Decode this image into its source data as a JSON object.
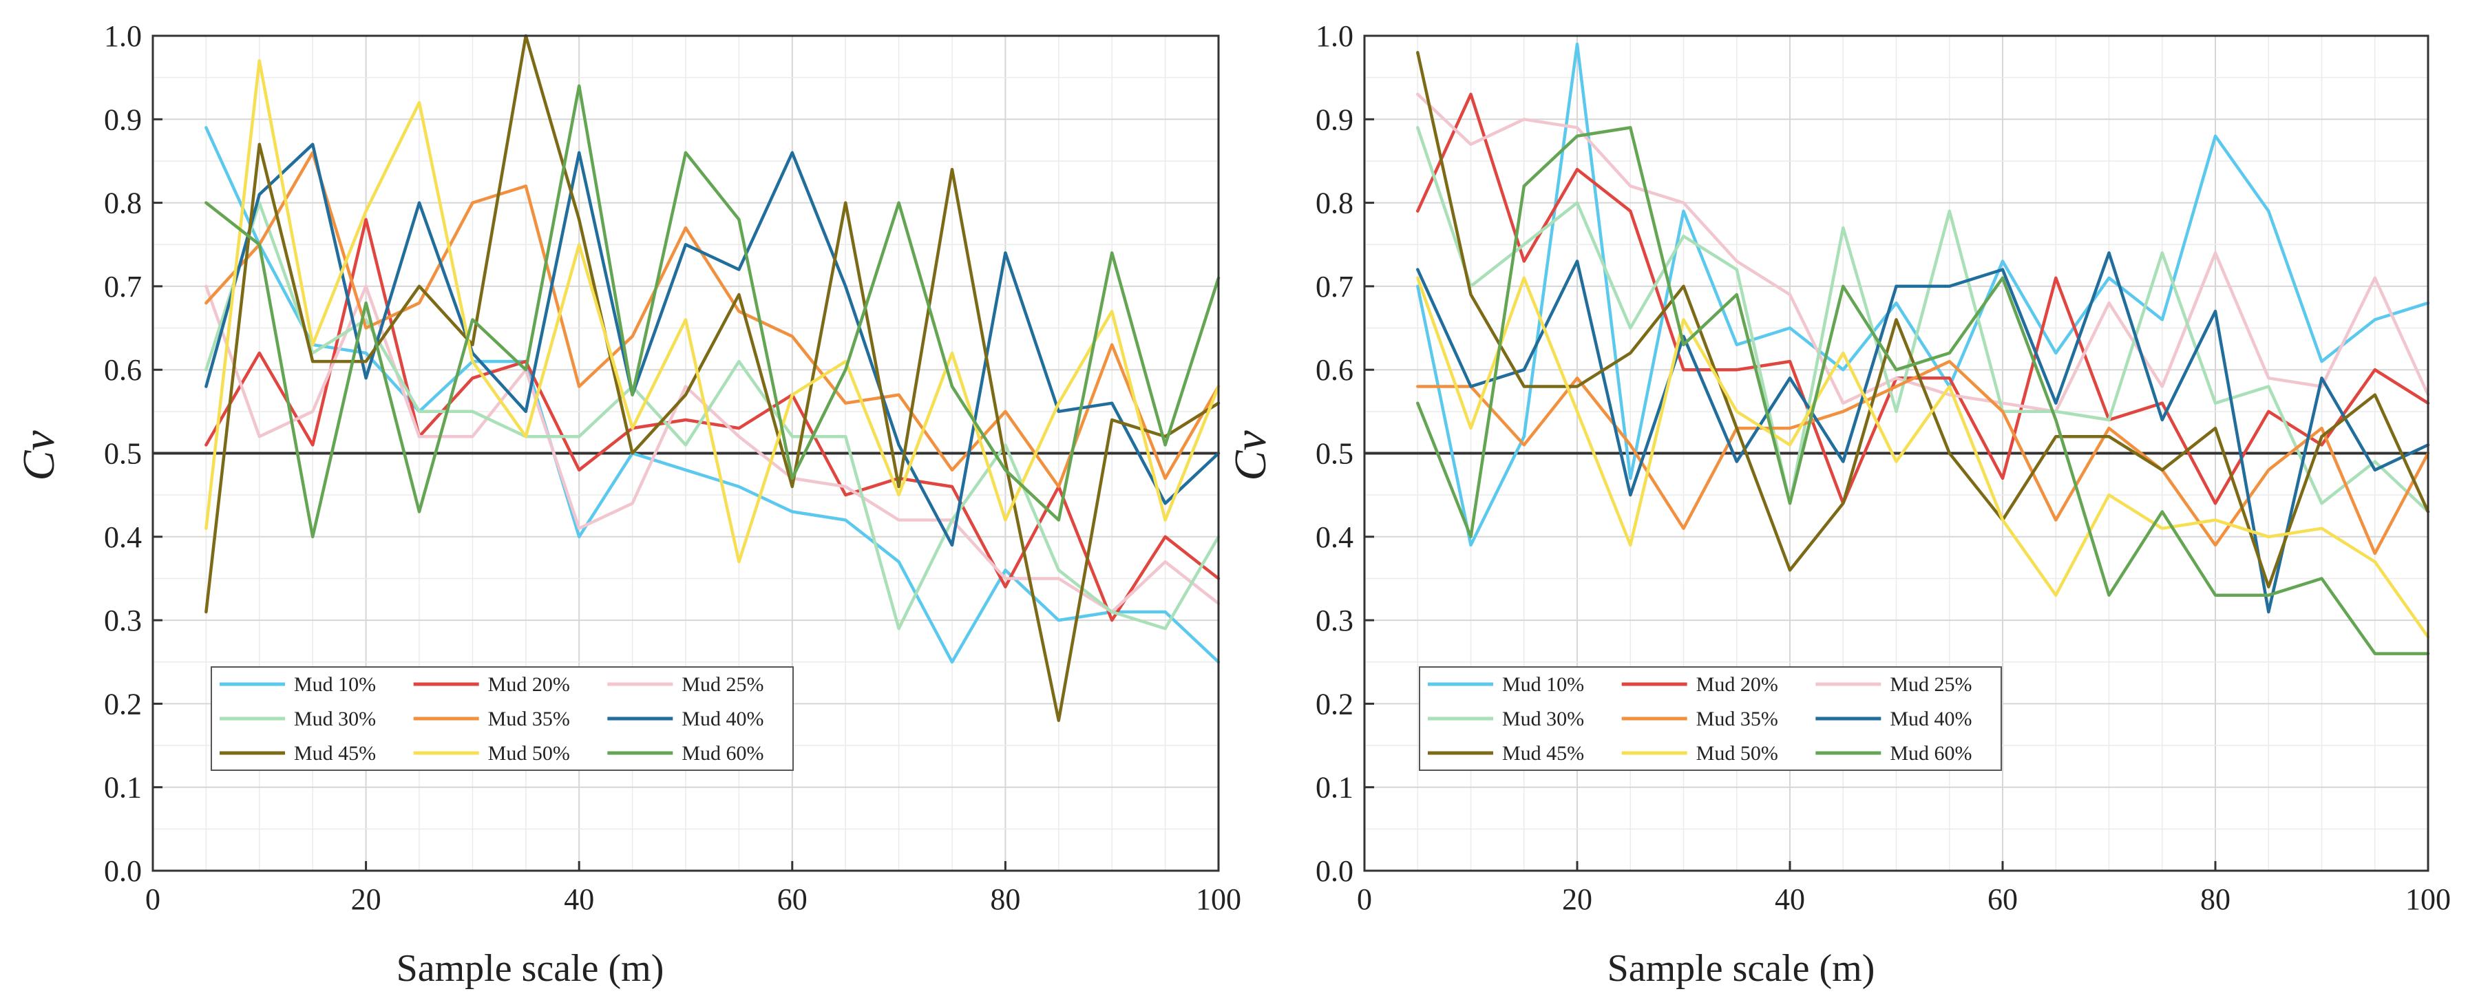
{
  "colors": {
    "Mud 10%": "#5bc8ee",
    "Mud 20%": "#e0453f",
    "Mud 25%": "#f2c6cf",
    "Mud 30%": "#a9e0b8",
    "Mud 35%": "#f1913f",
    "Mud 40%": "#216e9d",
    "Mud 45%": "#7c6a16",
    "Mud 50%": "#f6df52",
    "Mud 60%": "#63a552"
  },
  "chart_data": [
    {
      "type": "line",
      "title": "",
      "xlabel": "Sample scale (m)",
      "ylabel": "Cv",
      "xlim": [
        0,
        100
      ],
      "ylim": [
        0,
        1.0
      ],
      "xticks": [
        "0",
        "20",
        "40",
        "60",
        "80",
        "100"
      ],
      "yticks": [
        "0.0",
        "0.1",
        "0.2",
        "0.3",
        "0.4",
        "0.5",
        "0.6",
        "0.7",
        "0.8",
        "0.9",
        "1.0"
      ],
      "grid": true,
      "reference_line": 0.5,
      "legend_position": "bottom-left",
      "x": [
        5,
        10,
        15,
        20,
        25,
        30,
        35,
        40,
        45,
        50,
        55,
        60,
        65,
        70,
        75,
        80,
        85,
        90,
        95,
        100
      ],
      "series": [
        {
          "name": "Mud 10%",
          "values": [
            0.89,
            0.75,
            0.63,
            0.62,
            0.55,
            0.61,
            0.61,
            0.4,
            0.5,
            0.48,
            0.46,
            0.43,
            0.42,
            0.37,
            0.25,
            0.36,
            0.3,
            0.31,
            0.31,
            0.25
          ]
        },
        {
          "name": "Mud 20%",
          "values": [
            0.51,
            0.62,
            0.51,
            0.78,
            0.52,
            0.59,
            0.61,
            0.48,
            0.53,
            0.54,
            0.53,
            0.57,
            0.45,
            0.47,
            0.46,
            0.34,
            0.46,
            0.3,
            0.4,
            0.35
          ]
        },
        {
          "name": "Mud 25%",
          "values": [
            0.7,
            0.52,
            0.55,
            0.7,
            0.52,
            0.52,
            0.6,
            0.41,
            0.44,
            0.58,
            0.52,
            0.47,
            0.46,
            0.42,
            0.42,
            0.35,
            0.35,
            0.31,
            0.37,
            0.32
          ]
        },
        {
          "name": "Mud 30%",
          "values": [
            0.6,
            0.8,
            0.62,
            0.66,
            0.55,
            0.55,
            0.52,
            0.52,
            0.58,
            0.51,
            0.61,
            0.52,
            0.52,
            0.29,
            0.42,
            0.51,
            0.36,
            0.31,
            0.29,
            0.4
          ]
        },
        {
          "name": "Mud 35%",
          "values": [
            0.68,
            0.75,
            0.86,
            0.65,
            0.68,
            0.8,
            0.82,
            0.58,
            0.64,
            0.77,
            0.67,
            0.64,
            0.56,
            0.57,
            0.48,
            0.55,
            0.46,
            0.63,
            0.47,
            0.58
          ]
        },
        {
          "name": "Mud 40%",
          "values": [
            0.58,
            0.81,
            0.87,
            0.59,
            0.8,
            0.62,
            0.55,
            0.86,
            0.57,
            0.75,
            0.72,
            0.86,
            0.7,
            0.51,
            0.39,
            0.74,
            0.55,
            0.56,
            0.44,
            0.5
          ]
        },
        {
          "name": "Mud 45%",
          "values": [
            0.31,
            0.87,
            0.61,
            0.61,
            0.7,
            0.63,
            1.0,
            0.78,
            0.5,
            0.57,
            0.69,
            0.46,
            0.8,
            0.46,
            0.84,
            0.49,
            0.18,
            0.54,
            0.52,
            0.56
          ]
        },
        {
          "name": "Mud 50%",
          "values": [
            0.41,
            0.97,
            0.63,
            0.79,
            0.92,
            0.61,
            0.52,
            0.75,
            0.53,
            0.66,
            0.37,
            0.57,
            0.61,
            0.45,
            0.62,
            0.42,
            0.56,
            0.67,
            0.42,
            0.58
          ]
        },
        {
          "name": "Mud 60%",
          "values": [
            0.8,
            0.75,
            0.4,
            0.68,
            0.43,
            0.66,
            0.6,
            0.94,
            0.57,
            0.86,
            0.78,
            0.47,
            0.6,
            0.8,
            0.58,
            0.48,
            0.42,
            0.74,
            0.51,
            0.71
          ]
        }
      ]
    },
    {
      "type": "line",
      "title": "",
      "xlabel": "Sample scale (m)",
      "ylabel": "Cv",
      "xlim": [
        0,
        100
      ],
      "ylim": [
        0,
        1.0
      ],
      "xticks": [
        "0",
        "20",
        "40",
        "60",
        "80",
        "100"
      ],
      "yticks": [
        "0.0",
        "0.1",
        "0.2",
        "0.3",
        "0.4",
        "0.5",
        "0.6",
        "0.7",
        "0.8",
        "0.9",
        "1.0"
      ],
      "grid": true,
      "reference_line": 0.5,
      "legend_position": "bottom-left",
      "x": [
        5,
        10,
        15,
        20,
        25,
        30,
        35,
        40,
        45,
        50,
        55,
        60,
        65,
        70,
        75,
        80,
        85,
        90,
        95,
        100
      ],
      "series": [
        {
          "name": "Mud 10%",
          "values": [
            0.7,
            0.39,
            0.52,
            0.99,
            0.47,
            0.79,
            0.63,
            0.65,
            0.6,
            0.68,
            0.58,
            0.73,
            0.62,
            0.71,
            0.66,
            0.88,
            0.79,
            0.61,
            0.66,
            0.68
          ]
        },
        {
          "name": "Mud 20%",
          "values": [
            0.79,
            0.93,
            0.73,
            0.84,
            0.79,
            0.6,
            0.6,
            0.61,
            0.44,
            0.59,
            0.59,
            0.47,
            0.71,
            0.54,
            0.56,
            0.44,
            0.55,
            0.51,
            0.6,
            0.56
          ]
        },
        {
          "name": "Mud 25%",
          "values": [
            0.93,
            0.87,
            0.9,
            0.89,
            0.82,
            0.8,
            0.73,
            0.69,
            0.56,
            0.59,
            0.57,
            0.56,
            0.55,
            0.68,
            0.58,
            0.74,
            0.59,
            0.58,
            0.71,
            0.57
          ]
        },
        {
          "name": "Mud 30%",
          "values": [
            0.89,
            0.7,
            0.75,
            0.8,
            0.65,
            0.76,
            0.72,
            0.44,
            0.77,
            0.55,
            0.79,
            0.55,
            0.55,
            0.54,
            0.74,
            0.56,
            0.58,
            0.44,
            0.49,
            0.43
          ]
        },
        {
          "name": "Mud 35%",
          "values": [
            0.58,
            0.58,
            0.51,
            0.59,
            0.51,
            0.41,
            0.53,
            0.53,
            0.55,
            0.58,
            0.61,
            0.55,
            0.42,
            0.53,
            0.48,
            0.39,
            0.48,
            0.53,
            0.38,
            0.5
          ]
        },
        {
          "name": "Mud 40%",
          "values": [
            0.72,
            0.58,
            0.6,
            0.73,
            0.45,
            0.64,
            0.49,
            0.59,
            0.49,
            0.7,
            0.7,
            0.72,
            0.56,
            0.74,
            0.54,
            0.67,
            0.31,
            0.59,
            0.48,
            0.51
          ]
        },
        {
          "name": "Mud 45%",
          "values": [
            0.98,
            0.69,
            0.58,
            0.58,
            0.62,
            0.7,
            0.53,
            0.36,
            0.44,
            0.66,
            0.5,
            0.42,
            0.52,
            0.52,
            0.48,
            0.53,
            0.34,
            0.52,
            0.57,
            0.43
          ]
        },
        {
          "name": "Mud 50%",
          "values": [
            0.71,
            0.53,
            0.71,
            0.55,
            0.39,
            0.66,
            0.55,
            0.51,
            0.62,
            0.49,
            0.58,
            0.42,
            0.33,
            0.45,
            0.41,
            0.42,
            0.4,
            0.41,
            0.37,
            0.28
          ]
        },
        {
          "name": "Mud 60%",
          "values": [
            0.56,
            0.4,
            0.82,
            0.88,
            0.89,
            0.63,
            0.69,
            0.44,
            0.7,
            0.6,
            0.62,
            0.71,
            0.54,
            0.33,
            0.43,
            0.33,
            0.33,
            0.35,
            0.26,
            0.26
          ]
        }
      ]
    }
  ]
}
